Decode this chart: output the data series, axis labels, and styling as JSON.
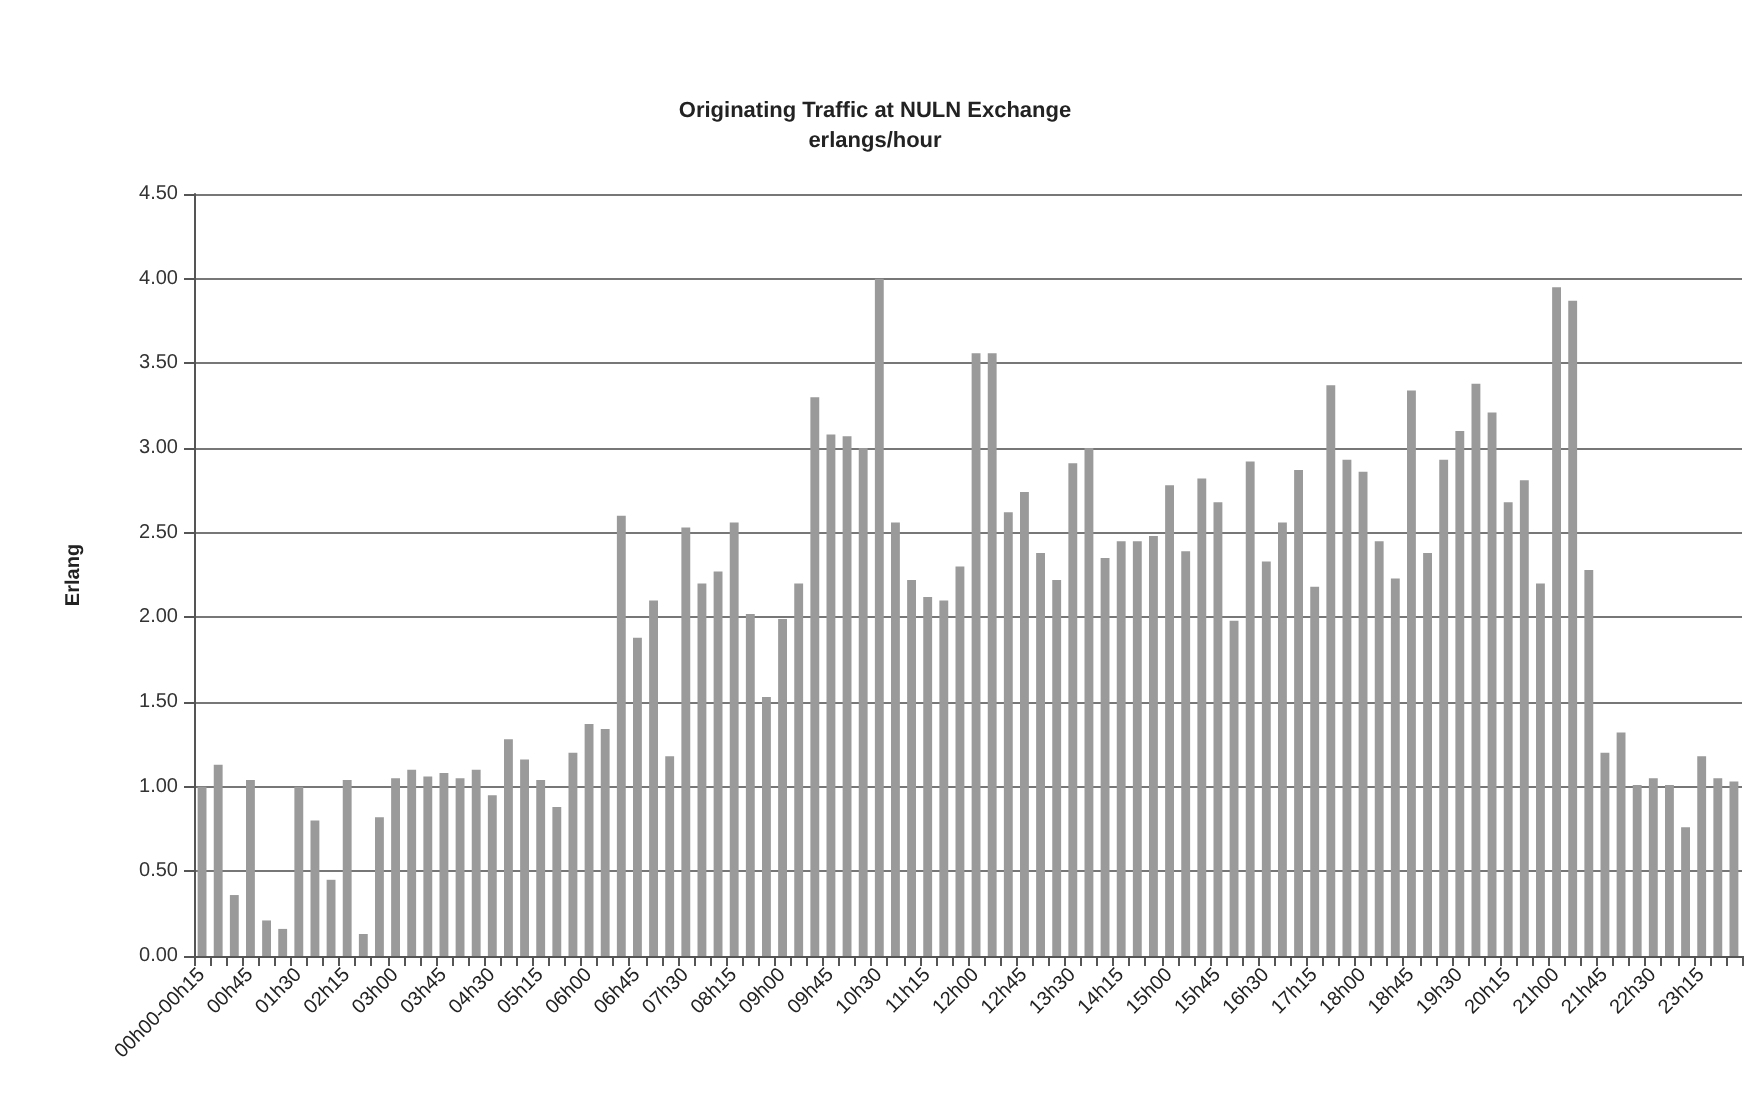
{
  "chart_data": {
    "type": "bar",
    "title": "Originating Traffic at NULN Exchange",
    "subtitle": "erlangs/hour",
    "ylabel": "Erlang",
    "categories": [
      "00h00-00h15",
      null,
      null,
      "00h45",
      null,
      null,
      "01h30",
      null,
      null,
      "02h15",
      null,
      null,
      "03h00",
      null,
      null,
      "03h45",
      null,
      null,
      "04h30",
      null,
      null,
      "05h15",
      null,
      null,
      "06h00",
      null,
      null,
      "06h45",
      null,
      null,
      "07h30",
      null,
      null,
      "08h15",
      null,
      null,
      "09h00",
      null,
      null,
      "09h45",
      null,
      null,
      "10h30",
      null,
      null,
      "11h15",
      null,
      null,
      "12h00",
      null,
      null,
      "12h45",
      null,
      null,
      "13h30",
      null,
      null,
      "14h15",
      null,
      null,
      "15h00",
      null,
      null,
      "15h45",
      null,
      null,
      "16h30",
      null,
      null,
      "17h15",
      null,
      null,
      "18h00",
      null,
      null,
      "18h45",
      null,
      null,
      "19h30",
      null,
      null,
      "20h15",
      null,
      null,
      "21h00",
      null,
      null,
      "21h45",
      null,
      null,
      "22h30",
      null,
      null,
      "23h15",
      null,
      null
    ],
    "values": [
      1.0,
      1.13,
      0.36,
      1.04,
      0.21,
      0.16,
      1.0,
      0.8,
      0.45,
      1.04,
      0.13,
      0.82,
      1.05,
      1.1,
      1.06,
      1.08,
      1.05,
      1.1,
      0.95,
      1.28,
      1.16,
      1.04,
      0.88,
      1.2,
      1.37,
      1.34,
      2.6,
      1.88,
      2.1,
      1.18,
      2.53,
      2.2,
      2.27,
      2.56,
      2.02,
      1.53,
      1.99,
      2.2,
      3.3,
      3.08,
      3.07,
      3.0,
      4.0,
      2.56,
      2.22,
      2.12,
      2.1,
      2.3,
      3.56,
      3.56,
      2.62,
      2.74,
      2.38,
      2.22,
      2.91,
      3.0,
      2.35,
      2.45,
      2.45,
      2.48,
      2.78,
      2.39,
      2.82,
      2.68,
      1.98,
      2.92,
      2.33,
      2.56,
      2.87,
      2.18,
      3.37,
      2.93,
      2.86,
      2.45,
      2.23,
      3.34,
      2.38,
      2.93,
      3.1,
      3.38,
      3.21,
      2.68,
      2.81,
      2.2,
      3.95,
      3.87,
      2.28,
      1.2,
      1.32,
      1.01,
      1.05,
      1.01,
      0.76,
      1.18,
      1.05,
      1.03
    ],
    "color": "#9a9a9a",
    "ylim": [
      0,
      4.5
    ],
    "yticks": [
      {
        "value": 0,
        "label": "0.00"
      },
      {
        "value": 0.5,
        "label": "0.50"
      },
      {
        "value": 1,
        "label": "1.00"
      },
      {
        "value": 1.5,
        "label": "1.50"
      },
      {
        "value": 2,
        "label": "2.00"
      },
      {
        "value": 2.5,
        "label": "2.50"
      },
      {
        "value": 3,
        "label": "3.00"
      },
      {
        "value": 3.5,
        "label": "3.50"
      },
      {
        "value": 4,
        "label": "4.00"
      },
      {
        "value": 4.5,
        "label": "4.50"
      }
    ],
    "grid": "y"
  }
}
